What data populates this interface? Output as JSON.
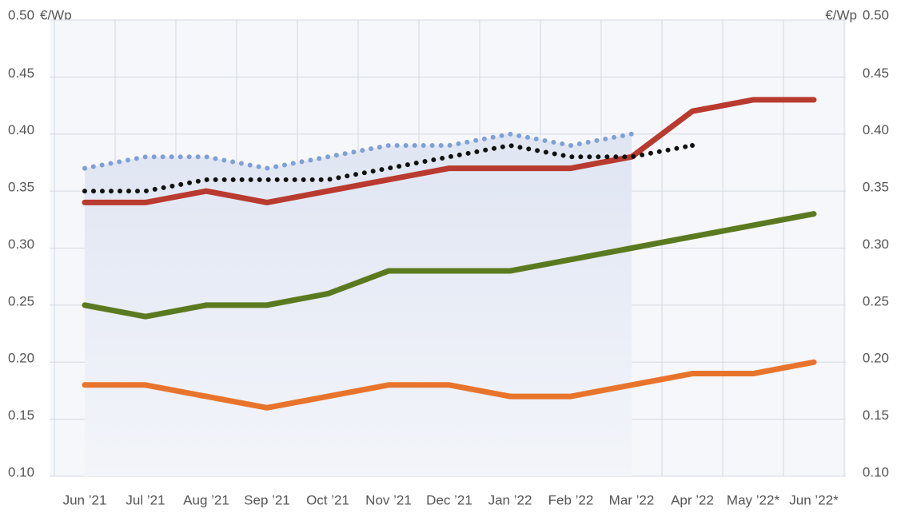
{
  "chart_data": {
    "type": "line",
    "y_unit": "€/Wp",
    "categories": [
      "Jun ’21",
      "Jul ’21",
      "Aug ’21",
      "Sep ’21",
      "Oct ’21",
      "Nov ’21",
      "Dec ’21",
      "Jan ’22",
      "Feb ’22",
      "Mar ’22",
      "Apr ’22",
      "May ’22*",
      "Jun ’22*"
    ],
    "series": [
      {
        "color": "#7f9fd6",
        "style": "dotted",
        "area": true,
        "values": [
          0.37,
          0.38,
          0.38,
          0.37,
          0.38,
          0.39,
          0.39,
          0.4,
          0.39,
          0.4,
          null,
          null,
          null
        ]
      },
      {
        "color": "#b93a2e",
        "style": "solid",
        "values": [
          0.34,
          0.34,
          0.35,
          0.34,
          0.35,
          0.36,
          0.37,
          0.37,
          0.37,
          0.38,
          0.42,
          0.43,
          0.43
        ]
      },
      {
        "color": "#111111",
        "style": "dotted",
        "drop_to": 2,
        "values": [
          0.35,
          0.35,
          0.36,
          0.36,
          0.36,
          0.37,
          0.38,
          0.39,
          0.38,
          0.38,
          0.39,
          null,
          null
        ]
      },
      {
        "color": "#5b7a1f",
        "style": "solid",
        "values": [
          0.25,
          0.24,
          0.25,
          0.25,
          0.26,
          0.28,
          0.28,
          0.28,
          0.29,
          0.3,
          0.31,
          0.32,
          0.33
        ]
      },
      {
        "color": "#e8742c",
        "style": "solid",
        "values": [
          0.18,
          0.18,
          0.17,
          0.16,
          0.17,
          0.18,
          0.18,
          0.17,
          0.17,
          0.18,
          0.19,
          0.19,
          0.2
        ]
      }
    ],
    "ylim": [
      0.1,
      0.5
    ],
    "yticks": [
      {
        "value": 0.1,
        "label": "0.10"
      },
      {
        "value": 0.15,
        "label": "0.15"
      },
      {
        "value": 0.2,
        "label": "0.20"
      },
      {
        "value": 0.25,
        "label": "0.25"
      },
      {
        "value": 0.3,
        "label": "0.30"
      },
      {
        "value": 0.35,
        "label": "0.35"
      },
      {
        "value": 0.4,
        "label": "0.40"
      },
      {
        "value": 0.45,
        "label": "0.45"
      },
      {
        "value": 0.5,
        "label": "0.50"
      }
    ],
    "grid": true
  }
}
